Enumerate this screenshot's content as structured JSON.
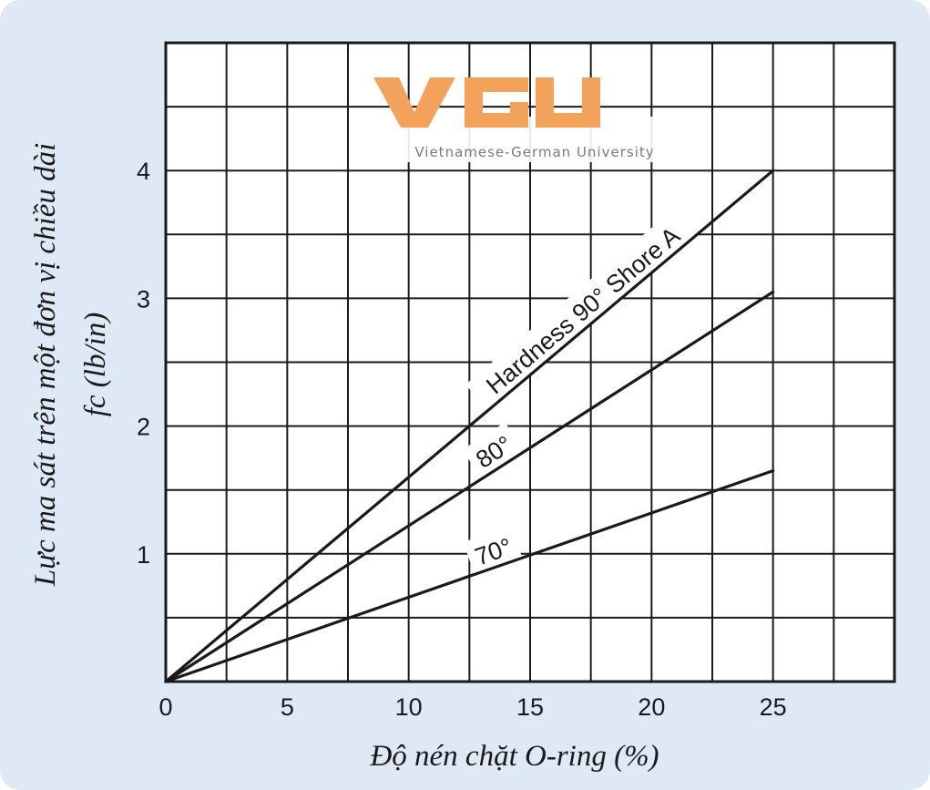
{
  "colors": {
    "background": "#dfe9f6",
    "plot_area": "#ffffff",
    "grid": "#1a1a1a",
    "line": "#1a1a1a",
    "watermark": "#f2a25a"
  },
  "watermark": {
    "logo": "VGU",
    "text": "Vietnamese-German University"
  },
  "chart_data": {
    "type": "line",
    "xlabel": "Độ nén chặt O-ring (%)",
    "ylabel_line1": "Lực ma sát trên một đơn vị chiều dài",
    "ylabel_line2": "fc (lb/in)",
    "xlim": [
      0,
      30
    ],
    "ylim": [
      0,
      5
    ],
    "x_ticks": [
      0,
      5,
      10,
      15,
      20,
      25
    ],
    "x_tick_labels": [
      "0",
      "5",
      "10",
      "15",
      "20",
      "25"
    ],
    "y_ticks": [
      1,
      2,
      3,
      4
    ],
    "y_tick_labels": [
      "1",
      "2",
      "3",
      "4"
    ],
    "grid": true,
    "grid_step_x": 2.5,
    "grid_step_y": 0.5,
    "series": [
      {
        "name": "Hardness 90° Shore A",
        "x": [
          0,
          25
        ],
        "y": [
          0,
          4.0
        ]
      },
      {
        "name": "80°",
        "x": [
          0,
          25
        ],
        "y": [
          0,
          3.05
        ]
      },
      {
        "name": "70°",
        "x": [
          0,
          25
        ],
        "y": [
          0,
          1.65
        ]
      }
    ]
  }
}
